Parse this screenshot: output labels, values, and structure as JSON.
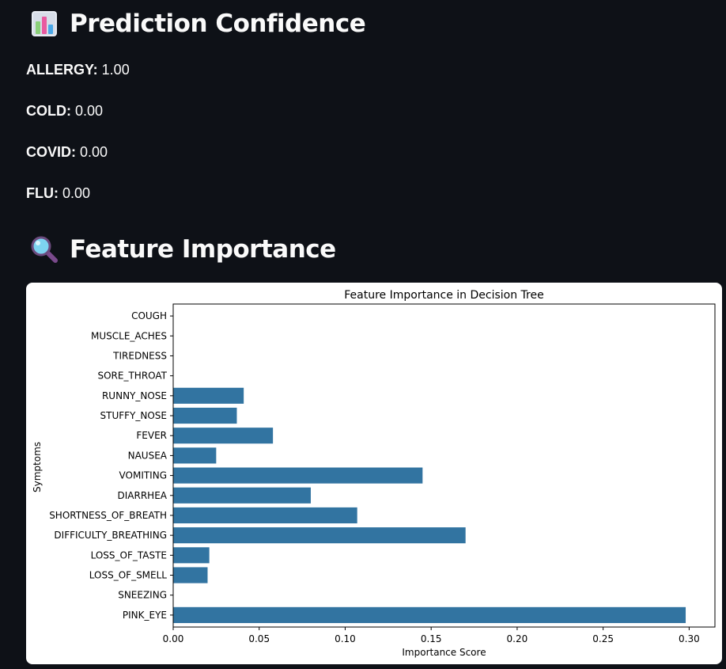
{
  "sections": {
    "prediction": {
      "title": "Prediction Confidence",
      "icon": "bar-chart-icon",
      "rows": [
        {
          "label": "ALLERGY",
          "value": "1.00"
        },
        {
          "label": "COLD",
          "value": "0.00"
        },
        {
          "label": "COVID",
          "value": "0.00"
        },
        {
          "label": "FLU",
          "value": "0.00"
        }
      ]
    },
    "features": {
      "title": "Feature Importance",
      "icon": "magnifying-glass-icon"
    }
  },
  "colors": {
    "background": "#0e1117",
    "text": "#fafafa",
    "bar": "#3274a1"
  },
  "chart_data": {
    "type": "bar",
    "orientation": "horizontal",
    "title": "Feature Importance in Decision Tree",
    "xlabel": "Importance Score",
    "ylabel": "Symptoms",
    "xlim": [
      0,
      0.315
    ],
    "xticks": [
      0.0,
      0.05,
      0.1,
      0.15,
      0.2,
      0.25,
      0.3
    ],
    "xtick_labels": [
      "0.00",
      "0.05",
      "0.10",
      "0.15",
      "0.20",
      "0.25",
      "0.30"
    ],
    "grid": false,
    "categories": [
      "COUGH",
      "MUSCLE_ACHES",
      "TIREDNESS",
      "SORE_THROAT",
      "RUNNY_NOSE",
      "STUFFY_NOSE",
      "FEVER",
      "NAUSEA",
      "VOMITING",
      "DIARRHEA",
      "SHORTNESS_OF_BREATH",
      "DIFFICULTY_BREATHING",
      "LOSS_OF_TASTE",
      "LOSS_OF_SMELL",
      "SNEEZING",
      "PINK_EYE"
    ],
    "values": [
      0.0,
      0.0,
      0.0,
      0.0,
      0.041,
      0.037,
      0.058,
      0.025,
      0.145,
      0.08,
      0.107,
      0.17,
      0.021,
      0.02,
      0.0,
      0.298
    ]
  }
}
